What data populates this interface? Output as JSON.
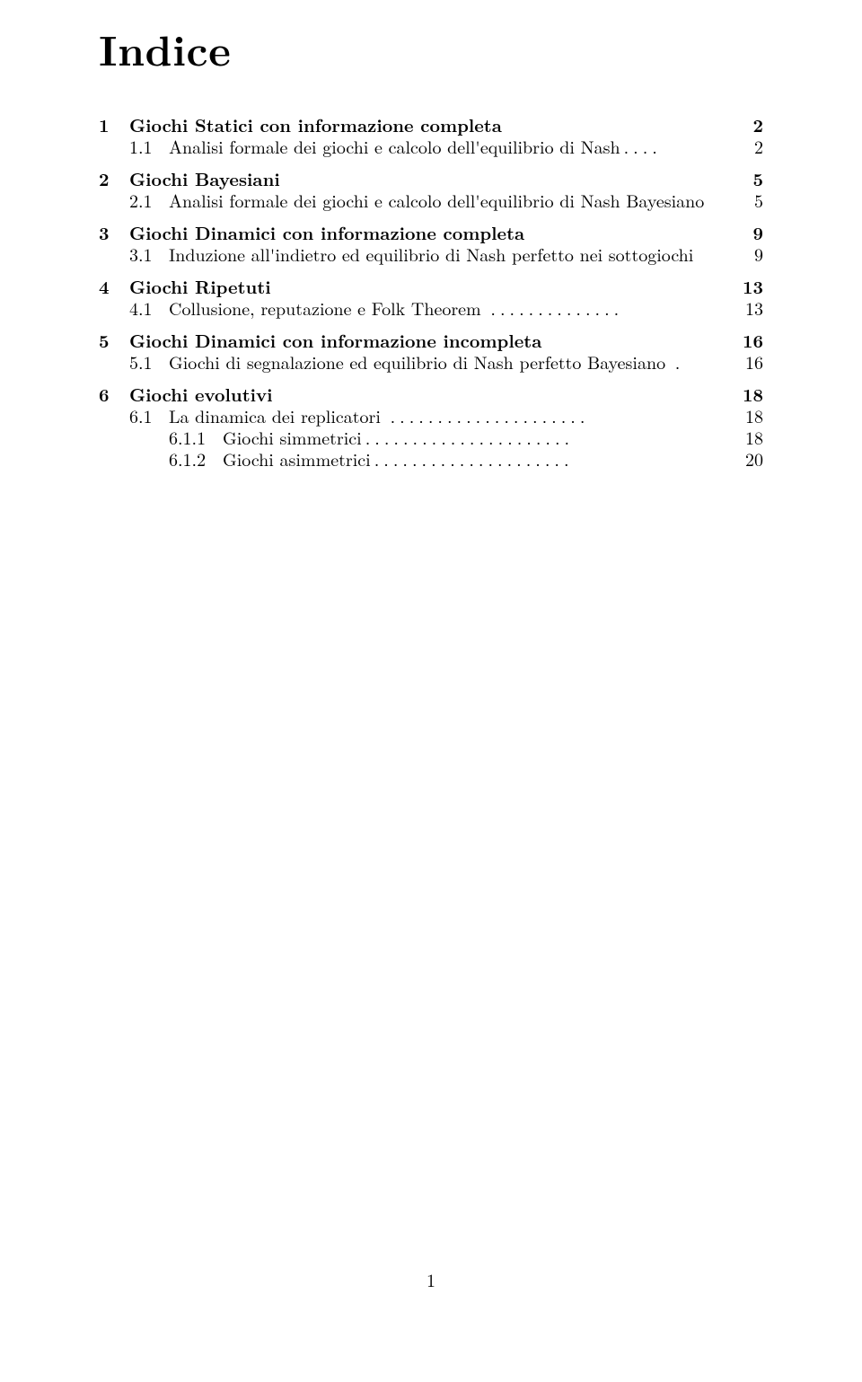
{
  "title": "Indice",
  "page_number": "1",
  "sections": [
    {
      "num": "1",
      "title": "Giochi Statici con informazione completa",
      "page": "2",
      "subs": [
        {
          "num": "1.1",
          "title": "Analisi formale dei giochi e calcolo dell'equilibrio di Nash",
          "leader": "....",
          "page": "2"
        }
      ]
    },
    {
      "num": "2",
      "title": "Giochi Bayesiani",
      "page": "5",
      "subs": [
        {
          "num": "2.1",
          "title": "Analisi formale dei giochi e calcolo dell'equilibrio di Nash Bayesiano",
          "leader": "",
          "page": "5"
        }
      ]
    },
    {
      "num": "3",
      "title": "Giochi Dinamici con informazione completa",
      "page": "9",
      "subs": [
        {
          "num": "3.1",
          "title": "Induzione all'indietro ed equilibrio di Nash perfetto nei sottogiochi",
          "leader": "",
          "page": "9"
        }
      ]
    },
    {
      "num": "4",
      "title": "Giochi Ripetuti",
      "page": "13",
      "subs": [
        {
          "num": "4.1",
          "title": "Collusione, reputazione e Folk Theorem ",
          "leader": "..............",
          "page": "13"
        }
      ]
    },
    {
      "num": "5",
      "title": "Giochi Dinamici con informazione incompleta",
      "page": "16",
      "subs": [
        {
          "num": "5.1",
          "title": "Giochi di segnalazione ed equilibrio di Nash perfetto Bayesiano ",
          "leader": ".",
          "page": "16"
        }
      ]
    },
    {
      "num": "6",
      "title": "Giochi evolutivi",
      "page": "18",
      "subs": [
        {
          "num": "6.1",
          "title": "La dinamica dei replicatori ",
          "leader": ".....................",
          "page": "18",
          "subsubs": [
            {
              "num": "6.1.1",
              "title": "Giochi simmetrici",
              "leader": "......................",
              "page": "18"
            },
            {
              "num": "6.1.2",
              "title": "Giochi asimmetrici",
              "leader": ".....................",
              "page": "20"
            }
          ]
        }
      ]
    }
  ]
}
